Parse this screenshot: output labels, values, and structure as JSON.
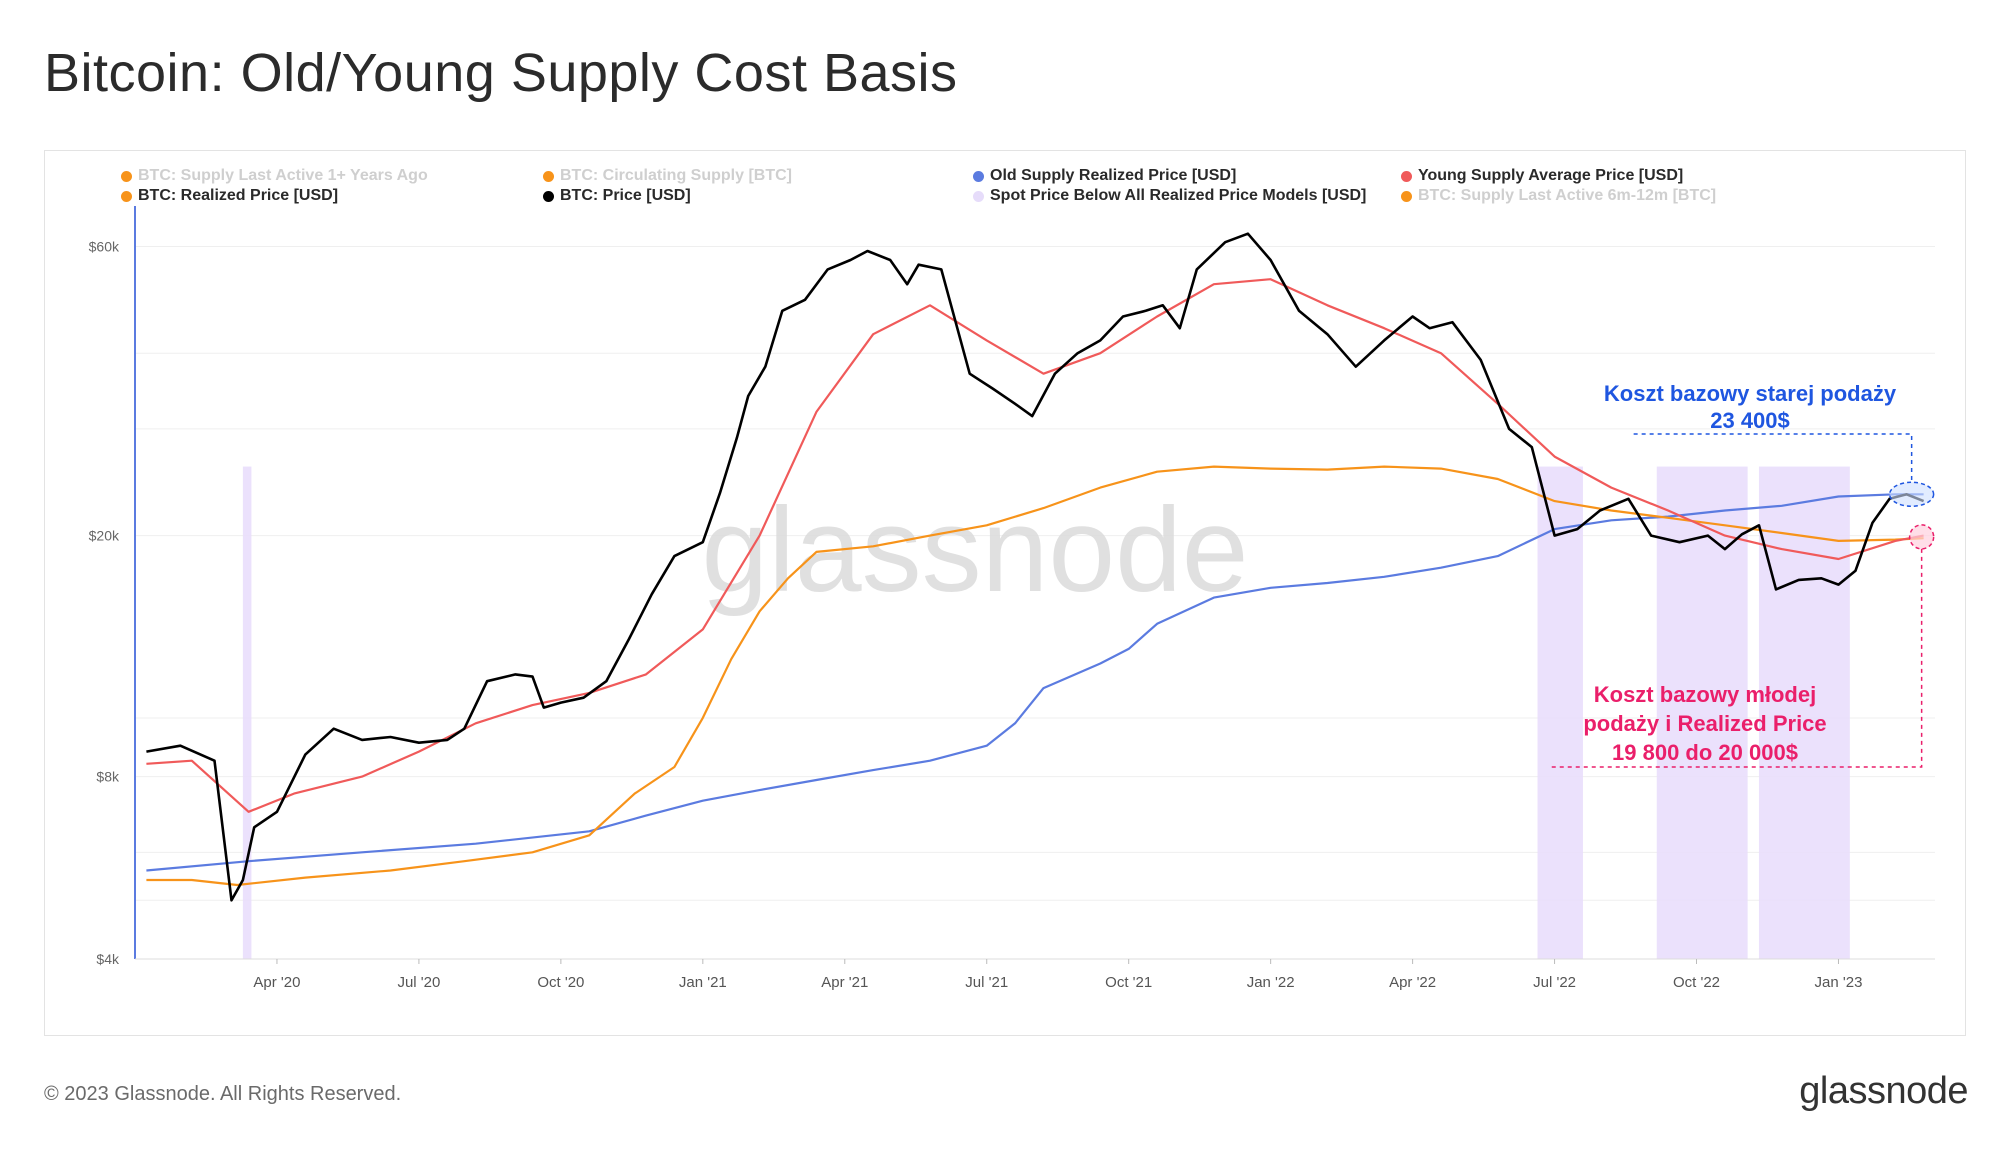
{
  "title": "Bitcoin: Old/Young Supply Cost Basis",
  "footer": {
    "copyright": "© 2023 Glassnode. All Rights Reserved.",
    "logo": "glassnode"
  },
  "watermark": "glassnode",
  "legend": [
    {
      "label": "BTC: Supply Last Active 1+ Years Ago",
      "color": "#f7931a",
      "muted": true
    },
    {
      "label": "BTC: Circulating Supply [BTC]",
      "color": "#f7931a",
      "muted": true
    },
    {
      "label": "Old Supply Realized Price [USD]",
      "color": "#5b7be0",
      "muted": false
    },
    {
      "label": "Young Supply Average Price [USD]",
      "color": "#f05a5a",
      "muted": false
    },
    {
      "label": "BTC: Realized Price [USD]",
      "color": "#f7931a",
      "muted": false
    },
    {
      "label": "BTC: Price [USD]",
      "color": "#000000",
      "muted": false
    },
    {
      "label": "Spot Price Below All Realized Price Models [USD]",
      "color": "#e6dcfa",
      "muted": false
    },
    {
      "label": "BTC: Supply Last Active 6m-12m [BTC]",
      "color": "#f7931a",
      "muted": true
    }
  ],
  "annotations": {
    "old_supply": {
      "line1": "Koszt bazowy starej podaży",
      "line2": "23 400$",
      "color": "#1f56e0"
    },
    "young_supply": {
      "line1": "Koszt bazowy młodej",
      "line2": "podaży i Realized Price",
      "line3": "19 800 do 20 000$",
      "color": "#ea1f6a"
    }
  },
  "chart_data": {
    "type": "line",
    "yscale": "log",
    "ylim": [
      4000,
      70000
    ],
    "y_ticks": [
      {
        "value": 4000,
        "label": "$4k"
      },
      {
        "value": 8000,
        "label": "$8k"
      },
      {
        "value": 20000,
        "label": "$20k"
      },
      {
        "value": 60000,
        "label": "$60k"
      }
    ],
    "x_ticks": [
      "Apr '20",
      "Jul '20",
      "Oct '20",
      "Jan '21",
      "Apr '21",
      "Jul '21",
      "Oct '21",
      "Jan '22",
      "Apr '22",
      "Jul '22",
      "Oct '22",
      "Jan '23"
    ],
    "xlim": [
      2020.0,
      2023.17
    ],
    "series": [
      {
        "name": "BTC: Price [USD]",
        "color": "#000000",
        "x": [
          2020.02,
          2020.08,
          2020.14,
          2020.17,
          2020.19,
          2020.21,
          2020.25,
          2020.3,
          2020.35,
          2020.4,
          2020.45,
          2020.5,
          2020.55,
          2020.58,
          2020.62,
          2020.67,
          2020.7,
          2020.72,
          2020.75,
          2020.79,
          2020.83,
          2020.87,
          2020.91,
          2020.95,
          2021.0,
          2021.03,
          2021.06,
          2021.08,
          2021.11,
          2021.14,
          2021.18,
          2021.22,
          2021.26,
          2021.29,
          2021.33,
          2021.36,
          2021.38,
          2021.42,
          2021.47,
          2021.51,
          2021.55,
          2021.58,
          2021.62,
          2021.66,
          2021.7,
          2021.74,
          2021.78,
          2021.81,
          2021.84,
          2021.87,
          2021.92,
          2021.96,
          2022.0,
          2022.05,
          2022.1,
          2022.15,
          2022.2,
          2022.25,
          2022.28,
          2022.32,
          2022.37,
          2022.42,
          2022.46,
          2022.5,
          2022.54,
          2022.58,
          2022.63,
          2022.67,
          2022.72,
          2022.77,
          2022.8,
          2022.83,
          2022.86,
          2022.89,
          2022.93,
          2022.97,
          2023.0,
          2023.03,
          2023.06,
          2023.09,
          2023.12,
          2023.15
        ],
        "y": [
          8800,
          9000,
          8500,
          5000,
          5400,
          6600,
          7000,
          8700,
          9600,
          9200,
          9300,
          9100,
          9200,
          9600,
          11500,
          11800,
          11700,
          10400,
          10600,
          10800,
          11500,
          13500,
          16000,
          18500,
          19500,
          23500,
          29000,
          34000,
          38000,
          47000,
          49000,
          55000,
          57000,
          59000,
          57000,
          52000,
          56000,
          55000,
          37000,
          35000,
          33000,
          31500,
          37000,
          40000,
          42000,
          46000,
          47000,
          48000,
          44000,
          55000,
          61000,
          63000,
          57000,
          47000,
          43000,
          38000,
          42000,
          46000,
          44000,
          45000,
          39000,
          30000,
          28000,
          20000,
          20500,
          22000,
          23000,
          20000,
          19500,
          20000,
          19000,
          20100,
          20800,
          16300,
          16900,
          17000,
          16600,
          17500,
          21000,
          23000,
          23400,
          22800
        ]
      },
      {
        "name": "Young Supply Average Price [USD]",
        "color": "#f05a5a",
        "x": [
          2020.02,
          2020.1,
          2020.2,
          2020.28,
          2020.4,
          2020.5,
          2020.6,
          2020.7,
          2020.8,
          2020.9,
          2021.0,
          2021.1,
          2021.2,
          2021.3,
          2021.4,
          2021.5,
          2021.6,
          2021.7,
          2021.8,
          2021.9,
          2022.0,
          2022.1,
          2022.2,
          2022.3,
          2022.4,
          2022.5,
          2022.6,
          2022.7,
          2022.8,
          2022.9,
          2023.0,
          2023.1,
          2023.15
        ],
        "y": [
          8400,
          8500,
          7000,
          7500,
          8000,
          8800,
          9800,
          10500,
          11000,
          11800,
          14000,
          20000,
          32000,
          43000,
          48000,
          42000,
          37000,
          40000,
          46000,
          52000,
          53000,
          48000,
          44000,
          40000,
          33000,
          27000,
          24000,
          22000,
          20000,
          19000,
          18300,
          19600,
          20000
        ]
      },
      {
        "name": "BTC: Realized Price [USD]",
        "color": "#f7931a",
        "x": [
          2020.02,
          2020.1,
          2020.18,
          2020.3,
          2020.45,
          2020.58,
          2020.7,
          2020.8,
          2020.88,
          2020.95,
          2021.0,
          2021.05,
          2021.1,
          2021.15,
          2021.2,
          2021.3,
          2021.4,
          2021.5,
          2021.6,
          2021.7,
          2021.8,
          2021.9,
          2022.0,
          2022.1,
          2022.2,
          2022.3,
          2022.4,
          2022.5,
          2022.6,
          2022.7,
          2022.8,
          2022.9,
          2023.0,
          2023.1,
          2023.15
        ],
        "y": [
          5400,
          5400,
          5300,
          5450,
          5600,
          5800,
          6000,
          6400,
          7500,
          8300,
          10000,
          12500,
          15000,
          17000,
          18800,
          19200,
          20000,
          20800,
          22200,
          24000,
          25500,
          26000,
          25800,
          25700,
          26000,
          25800,
          24800,
          22800,
          22000,
          21400,
          20800,
          20200,
          19600,
          19700,
          19800
        ]
      },
      {
        "name": "Old Supply Realized Price [USD]",
        "color": "#5b7be0",
        "x": [
          2020.02,
          2020.2,
          2020.4,
          2020.6,
          2020.8,
          2020.9,
          2021.0,
          2021.1,
          2021.2,
          2021.3,
          2021.4,
          2021.5,
          2021.55,
          2021.6,
          2021.7,
          2021.75,
          2021.8,
          2021.9,
          2022.0,
          2022.1,
          2022.2,
          2022.3,
          2022.4,
          2022.5,
          2022.6,
          2022.7,
          2022.8,
          2022.9,
          2023.0,
          2023.1,
          2023.15
        ],
        "y": [
          5600,
          5800,
          6000,
          6200,
          6500,
          6900,
          7300,
          7600,
          7900,
          8200,
          8500,
          9000,
          9800,
          11200,
          12300,
          13000,
          14300,
          15800,
          16400,
          16700,
          17100,
          17700,
          18500,
          20500,
          21200,
          21500,
          22000,
          22400,
          23200,
          23400,
          23400
        ]
      }
    ],
    "shaded_regions_label": "Spot Price Below All Realized Price Models [USD]",
    "shaded_regions": [
      [
        2020.19,
        2020.205
      ],
      [
        2022.47,
        2022.55
      ],
      [
        2022.68,
        2022.84
      ],
      [
        2022.86,
        2023.02
      ]
    ]
  }
}
